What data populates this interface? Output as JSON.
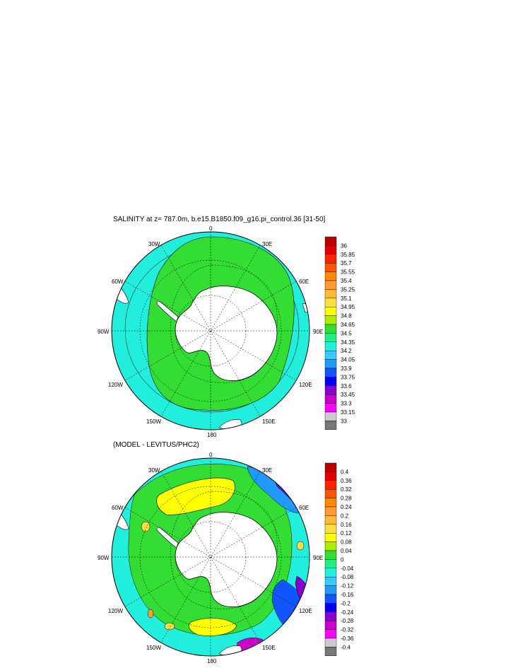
{
  "chart_data": [
    {
      "type": "heatmap",
      "projection": "south-polar-stereographic",
      "title": "SALINITY at z= 787.0m, b.e15.B1850.f09_g16.pi_control.36 [31-50]",
      "longitude_labels": {
        "top": "0",
        "top_right": "30E",
        "right_upper": "60E",
        "right": "90E",
        "right_lower": "120E",
        "bottom_right": "150E",
        "bottom": "180",
        "bottom_left": "150W",
        "left_lower": "120W",
        "left": "90W",
        "left_upper": "60W",
        "top_left": "30W"
      },
      "colorbar": {
        "levels": [
          "36",
          "35.85",
          "35.7",
          "35.55",
          "35.4",
          "35.25",
          "35.1",
          "34.95",
          "34.8",
          "34.65",
          "34.5",
          "34.35",
          "34.2",
          "34.05",
          "33.9",
          "33.75",
          "33.6",
          "33.45",
          "33.3",
          "33.15",
          "33"
        ],
        "colors": [
          "#bb0000",
          "#dd0000",
          "#ff2200",
          "#ff5500",
          "#ff8800",
          "#ff9933",
          "#ffbb33",
          "#ffdd44",
          "#ffff00",
          "#aaee00",
          "#33dd33",
          "#22ee88",
          "#22eedd",
          "#33ccff",
          "#2299ff",
          "#1155ff",
          "#0000ee",
          "#8800cc",
          "#cc00cc",
          "#ff00ff",
          "#cccccc",
          "#777777"
        ]
      },
      "field_summary": "Salinity 34.5-34.8 near the Antarctic continent, decreasing to about 34.2-34.35 toward the outer boundary"
    },
    {
      "type": "heatmap",
      "projection": "south-polar-stereographic",
      "title": "(MODEL - LEVITUS/PHC2)",
      "longitude_labels": {
        "top": "0",
        "top_right": "30E",
        "right_upper": "60E",
        "right": "90E",
        "right_lower": "120E",
        "bottom_right": "150E",
        "bottom": "180",
        "bottom_left": "150W",
        "left_lower": "120W",
        "left": "90W",
        "left_upper": "60W",
        "top_left": "30W"
      },
      "colorbar": {
        "levels": [
          "0.4",
          "0.36",
          "0.32",
          "0.28",
          "0.24",
          "0.2",
          "0.16",
          "0.12",
          "0.08",
          "0.04",
          "0",
          "-0.04",
          "-0.08",
          "-0.12",
          "-0.16",
          "-0.2",
          "-0.24",
          "-0.28",
          "-0.32",
          "-0.36",
          "-0.4"
        ],
        "colors": [
          "#bb0000",
          "#dd0000",
          "#ff2200",
          "#ff5500",
          "#ff8800",
          "#ff9933",
          "#ffbb33",
          "#ffdd44",
          "#ffff00",
          "#aaee00",
          "#33dd33",
          "#22ee88",
          "#22eedd",
          "#33ccff",
          "#2299ff",
          "#1155ff",
          "#0000ee",
          "#8800cc",
          "#cc00cc",
          "#ff00ff",
          "#cccccc",
          "#777777"
        ]
      },
      "field_summary": "Differences mostly 0 to 0.08 near Antarctica, with positive yellow patches and negative blue/purple anomalies toward the northeast and southeast boundary"
    }
  ],
  "colors": {
    "land": "#ffffff",
    "outline": "#000000"
  }
}
